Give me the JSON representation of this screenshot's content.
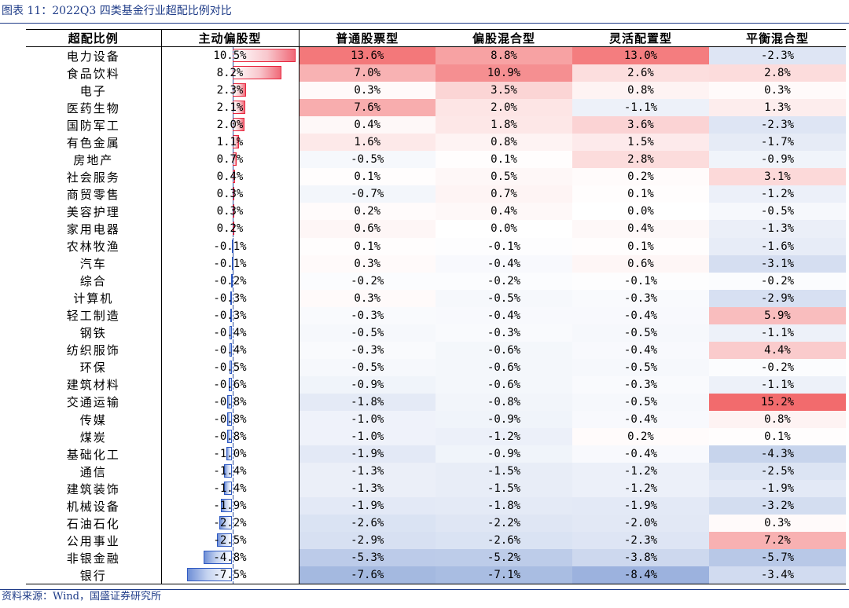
{
  "caption": "图表 11：2022Q3 四类基金行业超配比例对比",
  "source": "资料来源：Wind，国盛证券研究所",
  "colors": {
    "positive": "#f26b6d",
    "negative": "#5b80c8",
    "neutral": "#ffffff",
    "bar_positive_border": "#e8273f",
    "bar_negative_border": "#2e59c2"
  },
  "chart_data": {
    "type": "table",
    "title": "2022Q3 四类基金行业超配比例对比",
    "value_unit": "%",
    "columns": [
      "超配比例",
      "主动偏股型",
      "普通股票型",
      "偏股混合型",
      "灵活配置型",
      "平衡混合型"
    ],
    "rows": [
      {
        "industry": "电力设备",
        "values": [
          10.5,
          13.6,
          8.8,
          13.0,
          -2.3
        ],
        "labels": [
          "10.5%",
          "13.6%",
          "8.8%",
          "13.0%",
          "-2.3%"
        ]
      },
      {
        "industry": "食品饮料",
        "values": [
          8.2,
          7.0,
          10.9,
          2.6,
          2.8
        ],
        "labels": [
          "8.2%",
          "7.0%",
          "10.9%",
          "2.6%",
          "2.8%"
        ]
      },
      {
        "industry": "电子",
        "values": [
          2.3,
          0.3,
          3.5,
          0.8,
          0.3
        ],
        "labels": [
          "2.3%",
          "0.3%",
          "3.5%",
          "0.8%",
          "0.3%"
        ]
      },
      {
        "industry": "医药生物",
        "values": [
          2.1,
          7.6,
          2.0,
          -1.1,
          1.3
        ],
        "labels": [
          "2.1%",
          "7.6%",
          "2.0%",
          "-1.1%",
          "1.3%"
        ]
      },
      {
        "industry": "国防军工",
        "values": [
          2.0,
          0.4,
          1.8,
          3.6,
          -2.3
        ],
        "labels": [
          "2.0%",
          "0.4%",
          "1.8%",
          "3.6%",
          "-2.3%"
        ]
      },
      {
        "industry": "有色金属",
        "values": [
          1.1,
          1.6,
          0.8,
          1.5,
          -1.7
        ],
        "labels": [
          "1.1%",
          "1.6%",
          "0.8%",
          "1.5%",
          "-1.7%"
        ]
      },
      {
        "industry": "房地产",
        "values": [
          0.7,
          -0.5,
          0.1,
          2.8,
          -0.9
        ],
        "labels": [
          "0.7%",
          "-0.5%",
          "0.1%",
          "2.8%",
          "-0.9%"
        ]
      },
      {
        "industry": "社会服务",
        "values": [
          0.4,
          0.1,
          0.5,
          0.2,
          3.1
        ],
        "labels": [
          "0.4%",
          "0.1%",
          "0.5%",
          "0.2%",
          "3.1%"
        ]
      },
      {
        "industry": "商贸零售",
        "values": [
          0.3,
          -0.7,
          0.7,
          0.1,
          -1.2
        ],
        "labels": [
          "0.3%",
          "-0.7%",
          "0.7%",
          "0.1%",
          "-1.2%"
        ]
      },
      {
        "industry": "美容护理",
        "values": [
          0.3,
          0.2,
          0.4,
          0.0,
          -0.5
        ],
        "labels": [
          "0.3%",
          "0.2%",
          "0.4%",
          "0.0%",
          "-0.5%"
        ]
      },
      {
        "industry": "家用电器",
        "values": [
          0.2,
          0.6,
          0.0,
          0.4,
          -1.3
        ],
        "labels": [
          "0.2%",
          "0.6%",
          "0.0%",
          "0.4%",
          "-1.3%"
        ]
      },
      {
        "industry": "农林牧渔",
        "values": [
          -0.1,
          0.1,
          -0.1,
          0.1,
          -1.6
        ],
        "labels": [
          "-0.1%",
          "0.1%",
          "-0.1%",
          "0.1%",
          "-1.6%"
        ]
      },
      {
        "industry": "汽车",
        "values": [
          -0.1,
          0.3,
          -0.4,
          0.6,
          -3.1
        ],
        "labels": [
          "-0.1%",
          "0.3%",
          "-0.4%",
          "0.6%",
          "-3.1%"
        ]
      },
      {
        "industry": "综合",
        "values": [
          -0.2,
          -0.2,
          -0.2,
          -0.1,
          -0.2
        ],
        "labels": [
          "-0.2%",
          "-0.2%",
          "-0.2%",
          "-0.1%",
          "-0.2%"
        ]
      },
      {
        "industry": "计算机",
        "values": [
          -0.3,
          0.3,
          -0.5,
          -0.3,
          -2.9
        ],
        "labels": [
          "-0.3%",
          "0.3%",
          "-0.5%",
          "-0.3%",
          "-2.9%"
        ]
      },
      {
        "industry": "轻工制造",
        "values": [
          -0.3,
          -0.3,
          -0.4,
          -0.4,
          5.9
        ],
        "labels": [
          "-0.3%",
          "-0.3%",
          "-0.4%",
          "-0.4%",
          "5.9%"
        ]
      },
      {
        "industry": "钢铁",
        "values": [
          -0.4,
          -0.5,
          -0.3,
          -0.5,
          -1.1
        ],
        "labels": [
          "-0.4%",
          "-0.5%",
          "-0.3%",
          "-0.5%",
          "-1.1%"
        ]
      },
      {
        "industry": "纺织服饰",
        "values": [
          -0.4,
          -0.3,
          -0.6,
          -0.4,
          4.4
        ],
        "labels": [
          "-0.4%",
          "-0.3%",
          "-0.6%",
          "-0.4%",
          "4.4%"
        ]
      },
      {
        "industry": "环保",
        "values": [
          -0.5,
          -0.5,
          -0.6,
          -0.5,
          -0.2
        ],
        "labels": [
          "-0.5%",
          "-0.5%",
          "-0.6%",
          "-0.5%",
          "-0.2%"
        ]
      },
      {
        "industry": "建筑材料",
        "values": [
          -0.6,
          -0.9,
          -0.6,
          -0.3,
          -1.1
        ],
        "labels": [
          "-0.6%",
          "-0.9%",
          "-0.6%",
          "-0.3%",
          "-1.1%"
        ]
      },
      {
        "industry": "交通运输",
        "values": [
          -0.8,
          -1.8,
          -0.8,
          -0.5,
          15.2
        ],
        "labels": [
          "-0.8%",
          "-1.8%",
          "-0.8%",
          "-0.5%",
          "15.2%"
        ]
      },
      {
        "industry": "传媒",
        "values": [
          -0.8,
          -1.0,
          -0.9,
          -0.4,
          0.8
        ],
        "labels": [
          "-0.8%",
          "-1.0%",
          "-0.9%",
          "-0.4%",
          "0.8%"
        ]
      },
      {
        "industry": "煤炭",
        "values": [
          -0.8,
          -1.0,
          -1.2,
          0.2,
          0.1
        ],
        "labels": [
          "-0.8%",
          "-1.0%",
          "-1.2%",
          "0.2%",
          "0.1%"
        ]
      },
      {
        "industry": "基础化工",
        "values": [
          -1.0,
          -1.9,
          -0.9,
          -0.4,
          -4.3
        ],
        "labels": [
          "-1.0%",
          "-1.9%",
          "-0.9%",
          "-0.4%",
          "-4.3%"
        ]
      },
      {
        "industry": "通信",
        "values": [
          -1.4,
          -1.3,
          -1.5,
          -1.2,
          -2.5
        ],
        "labels": [
          "-1.4%",
          "-1.3%",
          "-1.5%",
          "-1.2%",
          "-2.5%"
        ]
      },
      {
        "industry": "建筑装饰",
        "values": [
          -1.4,
          -1.3,
          -1.5,
          -1.2,
          -1.9
        ],
        "labels": [
          "-1.4%",
          "-1.3%",
          "-1.5%",
          "-1.2%",
          "-1.9%"
        ]
      },
      {
        "industry": "机械设备",
        "values": [
          -1.9,
          -1.9,
          -1.8,
          -1.9,
          -3.2
        ],
        "labels": [
          "-1.9%",
          "-1.9%",
          "-1.8%",
          "-1.9%",
          "-3.2%"
        ]
      },
      {
        "industry": "石油石化",
        "values": [
          -2.2,
          -2.6,
          -2.2,
          -2.0,
          0.3
        ],
        "labels": [
          "-2.2%",
          "-2.6%",
          "-2.2%",
          "-2.0%",
          "0.3%"
        ]
      },
      {
        "industry": "公用事业",
        "values": [
          -2.5,
          -2.9,
          -2.6,
          -2.3,
          7.2
        ],
        "labels": [
          "-2.5%",
          "-2.9%",
          "-2.6%",
          "-2.3%",
          "7.2%"
        ]
      },
      {
        "industry": "非银金融",
        "values": [
          -4.8,
          -5.3,
          -5.2,
          -3.8,
          -5.7
        ],
        "labels": [
          "-4.8%",
          "-5.3%",
          "-5.2%",
          "-3.8%",
          "-5.7%"
        ]
      },
      {
        "industry": "银行",
        "values": [
          -7.5,
          -7.6,
          -7.1,
          -8.4,
          -3.4
        ],
        "labels": [
          "-7.5%",
          "-7.6%",
          "-7.1%",
          "-8.4%",
          "-3.4%"
        ]
      }
    ]
  }
}
